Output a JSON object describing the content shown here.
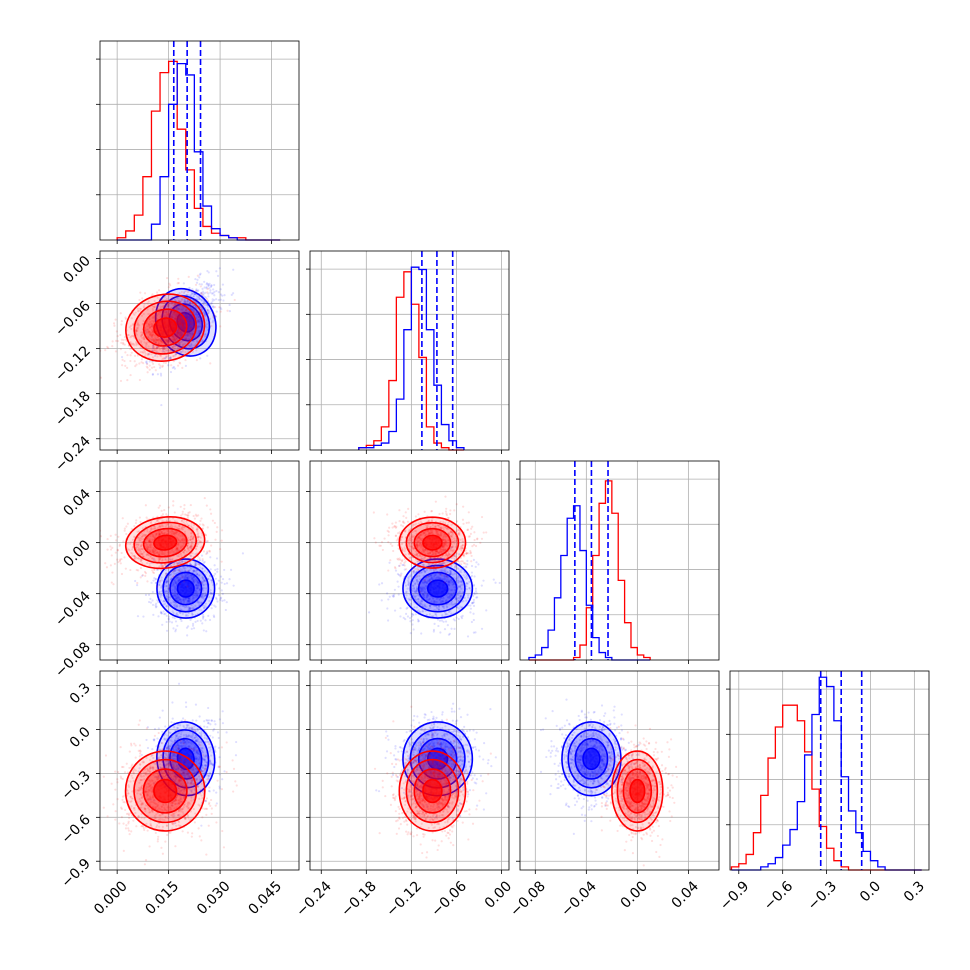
{
  "chart_data": {
    "type": "corner",
    "parameters": 4,
    "series": [
      {
        "color": "#ff0000"
      },
      {
        "color": "#0000ff"
      }
    ],
    "quantile_line_color": "#0000ff",
    "grid": true,
    "axes": {
      "p0": {
        "range": [
          -0.005,
          0.053
        ],
        "ticks": [
          0.0,
          0.015,
          0.03,
          0.045
        ],
        "tick_labels": [
          "0.000",
          "0.015",
          "0.030",
          "0.045"
        ]
      },
      "p1": {
        "range": [
          -0.255,
          0.01
        ],
        "ticks": [
          -0.24,
          -0.18,
          -0.12,
          -0.06,
          0.0
        ],
        "tick_labels": [
          "−0.24",
          "−0.18",
          "−0.12",
          "−0.06",
          "0.00"
        ]
      },
      "p2": {
        "range": [
          -0.092,
          0.064
        ],
        "ticks": [
          -0.08,
          -0.04,
          0.0,
          0.04
        ],
        "tick_labels": [
          "−0.08",
          "−0.04",
          "0.00",
          "0.04"
        ]
      },
      "p3": {
        "range": [
          -0.96,
          0.4
        ],
        "ticks": [
          -0.9,
          -0.6,
          -0.3,
          0.0,
          0.3
        ],
        "tick_labels": [
          "−0.9",
          "−0.6",
          "−0.3",
          "0.0",
          "0.3"
        ]
      }
    },
    "marginals": [
      {
        "param": "p0",
        "bin_width": 0.0025,
        "bins_start": 0.0,
        "red": [
          1,
          4,
          11,
          28,
          57,
          74,
          79,
          49,
          31,
          14,
          6,
          3,
          2,
          1,
          1,
          0,
          0,
          0,
          0
        ],
        "blue": [
          0,
          0,
          0,
          0,
          7,
          28,
          60,
          78,
          73,
          39,
          15,
          5,
          2,
          1,
          0,
          0,
          0,
          0,
          0
        ],
        "quantiles": [
          0.0165,
          0.0204,
          0.0243
        ],
        "ymax": 88
      },
      {
        "param": "p1",
        "bin_width": 0.01,
        "bins_start": -0.19,
        "red": [
          1,
          2,
          4,
          10,
          30,
          66,
          77,
          63,
          40,
          10,
          3,
          1,
          0,
          0
        ],
        "blue": [
          1,
          1,
          2,
          3,
          8,
          22,
          52,
          79,
          78,
          52,
          28,
          11,
          4,
          1
        ],
        "quantiles": [
          -0.106,
          -0.086,
          -0.065
        ],
        "ymax": 86
      },
      {
        "param": "p2",
        "bin_width": 0.005,
        "bins_start": -0.085,
        "red": [
          0,
          0,
          0,
          0,
          0,
          0,
          0,
          1,
          6,
          21,
          42,
          63,
          72,
          59,
          32,
          15,
          5,
          2,
          1
        ],
        "blue": [
          1,
          2,
          5,
          12,
          25,
          42,
          57,
          62,
          44,
          22,
          9,
          3,
          1,
          0,
          0,
          0,
          0,
          0,
          0
        ],
        "quantiles": [
          -0.049,
          -0.036,
          -0.023
        ],
        "ymax": 80
      },
      {
        "param": "p3",
        "bin_width": 0.05,
        "bins_start": -0.95,
        "red": [
          1,
          2,
          5,
          12,
          24,
          36,
          46,
          53,
          53,
          48,
          38,
          26,
          14,
          7,
          3,
          1,
          0,
          0,
          0,
          0,
          0,
          0,
          0,
          0,
          0,
          0
        ],
        "blue": [
          0,
          0,
          0,
          0,
          1,
          2,
          4,
          8,
          13,
          22,
          37,
          50,
          62,
          59,
          48,
          30,
          19,
          12,
          6,
          3,
          1,
          0,
          0,
          0,
          0,
          0
        ],
        "quantiles": [
          -0.34,
          -0.2,
          -0.06
        ],
        "ymax": 64
      }
    ],
    "joint": [
      {
        "x": "p0",
        "y": "p1",
        "red": {
          "mean": [
            0.014,
            -0.092
          ],
          "sd": [
            0.0055,
            0.021
          ],
          "rho": 0.35
        },
        "blue": {
          "mean": [
            0.02,
            -0.085
          ],
          "sd": [
            0.004,
            0.022
          ],
          "rho": 0.55
        }
      },
      {
        "x": "p0",
        "y": "p2",
        "red": {
          "mean": [
            0.014,
            0.0
          ],
          "sd": [
            0.0055,
            0.0095
          ],
          "rho": 0.25
        },
        "blue": {
          "mean": [
            0.02,
            -0.036
          ],
          "sd": [
            0.004,
            0.011
          ],
          "rho": 0.0
        }
      },
      {
        "x": "p1",
        "y": "p2",
        "red": {
          "mean": [
            -0.092,
            0.0
          ],
          "sd": [
            0.021,
            0.0095
          ],
          "rho": 0.0
        },
        "blue": {
          "mean": [
            -0.085,
            -0.036
          ],
          "sd": [
            0.022,
            0.011
          ],
          "rho": 0.0
        }
      },
      {
        "x": "p0",
        "y": "p3",
        "red": {
          "mean": [
            0.014,
            -0.42
          ],
          "sd": [
            0.0055,
            0.13
          ],
          "rho": 0.1
        },
        "blue": {
          "mean": [
            0.02,
            -0.2
          ],
          "sd": [
            0.004,
            0.12
          ],
          "rho": 0.1
        }
      },
      {
        "x": "p1",
        "y": "p3",
        "red": {
          "mean": [
            -0.092,
            -0.42
          ],
          "sd": [
            0.021,
            0.13
          ],
          "rho": 0.0
        },
        "blue": {
          "mean": [
            -0.085,
            -0.2
          ],
          "sd": [
            0.022,
            0.12
          ],
          "rho": 0.0
        }
      },
      {
        "x": "p2",
        "y": "p3",
        "red": {
          "mean": [
            0.0,
            -0.42
          ],
          "sd": [
            0.0095,
            0.13
          ],
          "rho": 0.0
        },
        "blue": {
          "mean": [
            -0.036,
            -0.2
          ],
          "sd": [
            0.011,
            0.12
          ],
          "rho": 0.0
        }
      }
    ]
  }
}
